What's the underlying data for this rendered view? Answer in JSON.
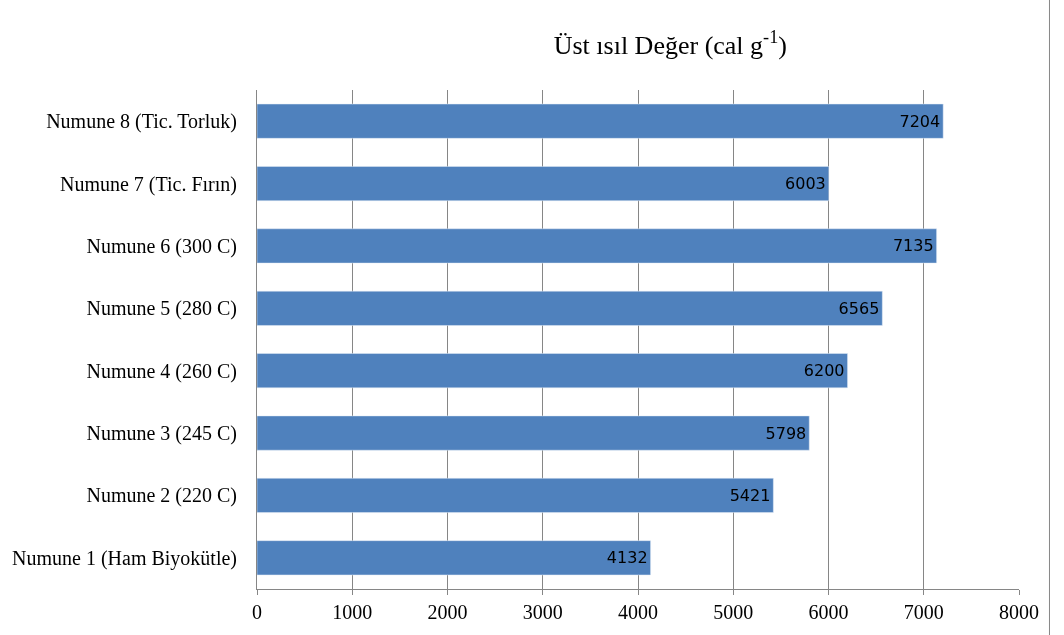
{
  "chart_data": {
    "type": "bar",
    "orientation": "horizontal",
    "title": "Üst ısıl Değer (cal g$^{-1}$)",
    "categories": [
      "Numune 8 (Tic. Torluk)",
      "Numune 7 (Tic. Fırın)",
      "Numune 6 (300 C)",
      "Numune 5 (280 C)",
      "Numune 4 (260 C)",
      "Numune 3 (245 C)",
      "Numune 2 (220 C)",
      "Numune 1 (Ham Biyokütle)"
    ],
    "values": [
      7204,
      6003,
      7135,
      6565,
      6200,
      5798,
      5421,
      4132
    ],
    "color": "#4f81bd",
    "xlim": [
      0,
      8000
    ],
    "xticks": [
      0,
      1000,
      2000,
      3000,
      4000,
      5000,
      6000,
      7000,
      8000
    ],
    "grid": "x",
    "data_labels": true
  }
}
